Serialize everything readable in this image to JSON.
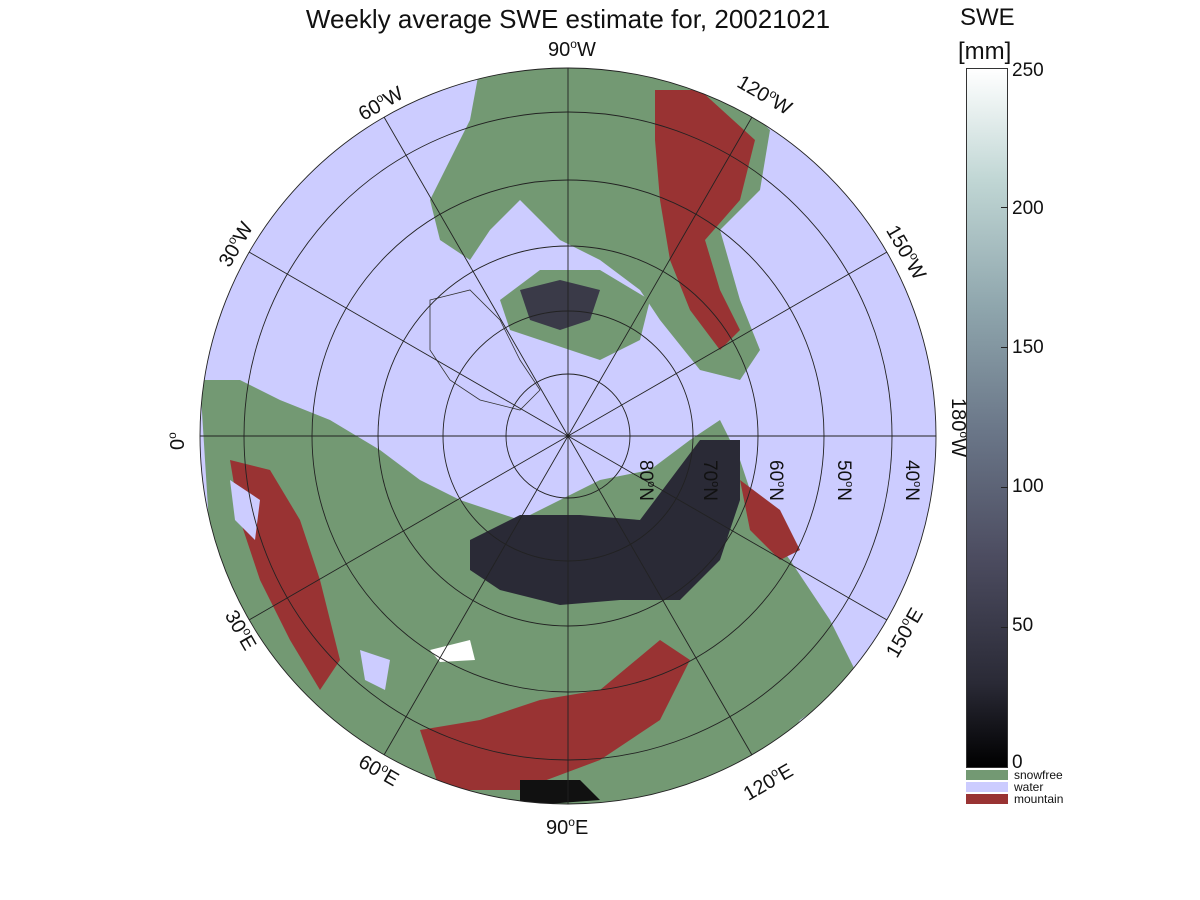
{
  "title": "Weekly average SWE estimate for, 20021021",
  "colorbar": {
    "header_line1": "SWE",
    "header_line2": "[mm]",
    "ticks": [
      "250",
      "200",
      "150",
      "100",
      "50",
      "0"
    ],
    "gradient_colors": [
      "#000000",
      "#4c4c60",
      "#8fa6ad",
      "#ffffff"
    ]
  },
  "legend": [
    {
      "label": "snowfree",
      "color": "#739973"
    },
    {
      "label": "water",
      "color": "#ccccff"
    },
    {
      "label": "mountain",
      "color": "#993333"
    }
  ],
  "map": {
    "projection": "north polar stereographic",
    "colors": {
      "water": "#ccccff",
      "land": "#739973",
      "mountain": "#993333",
      "snow": "#3a3a48"
    },
    "longitude_labels": [
      {
        "text": "90",
        "unit": "W"
      },
      {
        "text": "120",
        "unit": "W"
      },
      {
        "text": "150",
        "unit": "W"
      },
      {
        "text": "180",
        "unit": "W"
      },
      {
        "text": "150",
        "unit": "E"
      },
      {
        "text": "120",
        "unit": "E"
      },
      {
        "text": "90",
        "unit": "E"
      },
      {
        "text": "60",
        "unit": "E"
      },
      {
        "text": "30",
        "unit": "E"
      },
      {
        "text": "0",
        "unit": ""
      },
      {
        "text": "30",
        "unit": "W"
      },
      {
        "text": "60",
        "unit": "W"
      }
    ],
    "latitude_labels": [
      "80",
      "70",
      "60",
      "50",
      "40"
    ],
    "latitude_unit": "N"
  }
}
